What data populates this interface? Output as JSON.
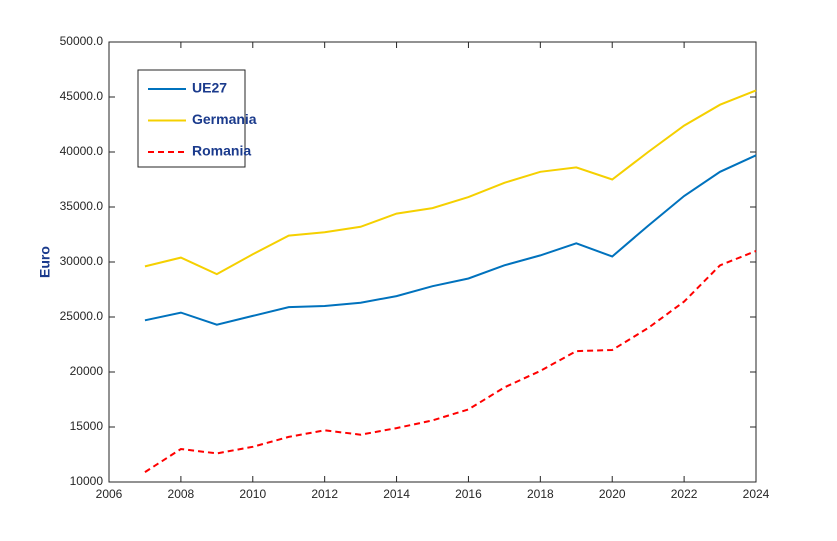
{
  "chart_data": {
    "type": "line",
    "y_label": "Euro",
    "x": [
      2007,
      2008,
      2009,
      2010,
      2011,
      2012,
      2013,
      2014,
      2015,
      2016,
      2017,
      2018,
      2019,
      2020,
      2021,
      2022,
      2023,
      2024
    ],
    "series": [
      {
        "name": "UE27",
        "color": "#0072bd",
        "style": "solid",
        "values": [
          24700,
          25400,
          24300,
          25100,
          25900,
          26000,
          26300,
          26900,
          27800,
          28500,
          29700,
          30600,
          31700,
          30500,
          33300,
          36000,
          38200,
          39700
        ]
      },
      {
        "name": "Germania",
        "color": "#f5d000",
        "style": "solid",
        "values": [
          29600,
          30400,
          28900,
          30700,
          32400,
          32700,
          33200,
          34400,
          34900,
          35900,
          37200,
          38200,
          38600,
          37500,
          40000,
          42400,
          44300,
          45600
        ]
      },
      {
        "name": "Romania",
        "color": "#ff0000",
        "style": "dashed",
        "values": [
          10900,
          13000,
          12600,
          13200,
          14100,
          14700,
          14300,
          14900,
          15600,
          16600,
          18600,
          20100,
          21900,
          22000,
          24000,
          26400,
          29700,
          31000
        ]
      }
    ],
    "xlim": [
      2006,
      2024
    ],
    "xticks": [
      2006,
      2008,
      2010,
      2012,
      2014,
      2016,
      2018,
      2020,
      2022,
      2024
    ],
    "ylim": [
      10000,
      50000
    ],
    "yticks": [
      10000,
      15000,
      20000,
      {
        "value": 25000,
        "label": "25000.0"
      },
      {
        "value": 30000,
        "label": "30000.0"
      },
      {
        "value": 35000,
        "label": "35000.0"
      },
      {
        "value": 40000,
        "label": "40000.0"
      },
      {
        "value": 45000,
        "label": "45000.0"
      },
      {
        "value": 50000,
        "label": "50000.0"
      }
    ],
    "grid": false,
    "legend": "top-left"
  }
}
